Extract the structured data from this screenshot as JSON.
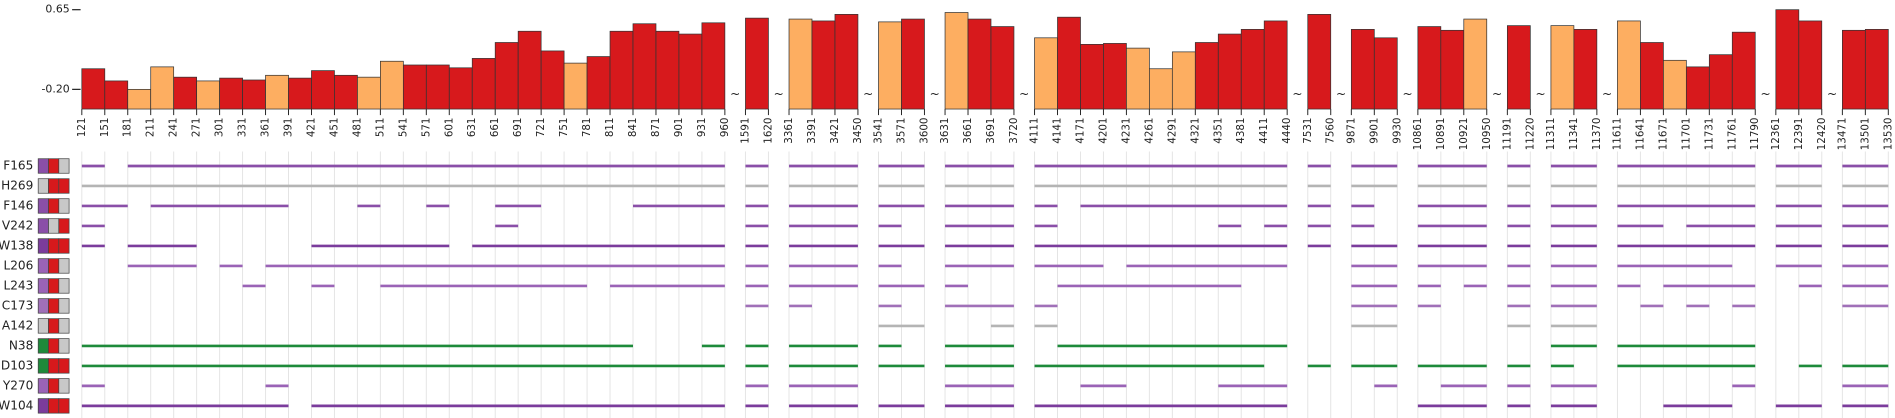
{
  "chart_data": {
    "type": "bar",
    "ylim": [
      -0.41,
      0.65
    ],
    "yticks": [
      0.65,
      {
        "value": -0.2,
        "label": "-0.20"
      }
    ],
    "break_label": "~",
    "grid": true,
    "segments": [
      {
        "bins": [
          121,
          151,
          181,
          211,
          241,
          271,
          301,
          331,
          361,
          391,
          421,
          451,
          481,
          511,
          541,
          571,
          601,
          631,
          661,
          691,
          721,
          751,
          781,
          811,
          841,
          871,
          901,
          931,
          960
        ],
        "values": [
          0.02,
          -0.11,
          -0.2,
          0.04,
          -0.07,
          -0.11,
          -0.08,
          -0.1,
          -0.05,
          -0.08,
          0.0,
          -0.05,
          -0.07,
          0.1,
          0.06,
          0.06,
          0.03,
          0.13,
          0.3,
          0.42,
          0.21,
          0.08,
          0.15,
          0.42,
          0.5,
          0.42,
          0.39,
          0.51
        ],
        "colors": [
          "#d7191c",
          "#d7191c",
          "#fdae61",
          "#fdae61",
          "#d7191c",
          "#fdae61",
          "#d7191c",
          "#d7191c",
          "#fdae61",
          "#d7191c",
          "#d7191c",
          "#d7191c",
          "#fdae61",
          "#fdae61",
          "#d7191c",
          "#d7191c",
          "#d7191c",
          "#d7191c",
          "#d7191c",
          "#d7191c",
          "#d7191c",
          "#fdae61",
          "#d7191c",
          "#d7191c",
          "#d7191c",
          "#d7191c",
          "#d7191c",
          "#d7191c"
        ]
      },
      {
        "bins": [
          1591,
          1620
        ],
        "values": [
          0.56
        ],
        "colors": [
          "#d7191c"
        ]
      },
      {
        "bins": [
          3361,
          3391,
          3421,
          3450
        ],
        "values": [
          0.55,
          0.53,
          0.6
        ],
        "colors": [
          "#fdae61",
          "#d7191c",
          "#d7191c"
        ]
      },
      {
        "bins": [
          3541,
          3571,
          3600
        ],
        "values": [
          0.52,
          0.55
        ],
        "colors": [
          "#fdae61",
          "#d7191c"
        ]
      },
      {
        "bins": [
          3631,
          3661,
          3691,
          3720
        ],
        "values": [
          0.62,
          0.55,
          0.47
        ],
        "colors": [
          "#fdae61",
          "#d7191c",
          "#d7191c"
        ]
      },
      {
        "bins": [
          4111,
          4141,
          4171,
          4201,
          4231,
          4261,
          4291,
          4321,
          4351,
          4381,
          4411,
          4440
        ],
        "values": [
          0.35,
          0.57,
          0.28,
          0.29,
          0.24,
          0.02,
          0.2,
          0.3,
          0.39,
          0.44,
          0.53
        ],
        "colors": [
          "#fdae61",
          "#d7191c",
          "#d7191c",
          "#d7191c",
          "#fdae61",
          "#fdae61",
          "#fdae61",
          "#d7191c",
          "#d7191c",
          "#d7191c",
          "#d7191c"
        ]
      },
      {
        "bins": [
          7531,
          7560
        ],
        "values": [
          0.6
        ],
        "colors": [
          "#d7191c"
        ]
      },
      {
        "bins": [
          9871,
          9901,
          9930
        ],
        "values": [
          0.44,
          0.35
        ],
        "colors": [
          "#d7191c",
          "#d7191c"
        ]
      },
      {
        "bins": [
          10861,
          10891,
          10921,
          10950
        ],
        "values": [
          0.47,
          0.43,
          0.55
        ],
        "colors": [
          "#d7191c",
          "#d7191c",
          "#fdae61"
        ]
      },
      {
        "bins": [
          11191,
          11220
        ],
        "values": [
          0.48
        ],
        "colors": [
          "#d7191c"
        ]
      },
      {
        "bins": [
          11311,
          11341,
          11370
        ],
        "values": [
          0.48,
          0.44
        ],
        "colors": [
          "#fdae61",
          "#d7191c"
        ]
      },
      {
        "bins": [
          11611,
          11641,
          11671,
          11701,
          11731,
          11761,
          11790
        ],
        "values": [
          0.53,
          0.3,
          0.11,
          0.04,
          0.17,
          0.41
        ],
        "colors": [
          "#fdae61",
          "#d7191c",
          "#fdae61",
          "#d7191c",
          "#d7191c",
          "#d7191c"
        ]
      },
      {
        "bins": [
          12361,
          12391,
          12420
        ],
        "values": [
          0.65,
          0.53
        ],
        "colors": [
          "#d7191c",
          "#d7191c"
        ]
      },
      {
        "bins": [
          13471,
          13501,
          13530
        ],
        "values": [
          0.43,
          0.44
        ],
        "colors": [
          "#d7191c",
          "#d7191c"
        ]
      }
    ],
    "rows": [
      {
        "name": "F165",
        "color": "#8a4fa8",
        "swatches": [
          "#8a4fa8",
          "#d7191c",
          "#c8c8c8"
        ],
        "spans": [
          [
            121,
            151
          ],
          [
            181,
            960
          ],
          [
            1591,
            1620
          ],
          [
            3361,
            3450
          ],
          [
            3541,
            3600
          ],
          [
            3631,
            3720
          ],
          [
            4111,
            4440
          ],
          [
            7531,
            7560
          ],
          [
            9871,
            9930
          ],
          [
            10861,
            10950
          ],
          [
            11191,
            11220
          ],
          [
            11311,
            11370
          ],
          [
            11611,
            11790
          ],
          [
            12361,
            12420
          ],
          [
            13471,
            13530
          ]
        ]
      },
      {
        "name": "H269",
        "color": "#b4b4b4",
        "swatches": [
          "#c8c8c8",
          "#d7191c",
          "#d7191c"
        ],
        "spans": [
          [
            121,
            960
          ],
          [
            1591,
            1620
          ],
          [
            3361,
            3450
          ],
          [
            3541,
            3600
          ],
          [
            3631,
            3720
          ],
          [
            4111,
            4440
          ],
          [
            7531,
            7560
          ],
          [
            9871,
            9930
          ],
          [
            10861,
            10950
          ],
          [
            11191,
            11220
          ],
          [
            11311,
            11370
          ],
          [
            11611,
            11790
          ],
          [
            12361,
            12420
          ],
          [
            13471,
            13530
          ]
        ]
      },
      {
        "name": "F146",
        "color": "#8a4fa8",
        "swatches": [
          "#8a4fa8",
          "#d7191c",
          "#c8c8c8"
        ],
        "spans": [
          [
            121,
            181
          ],
          [
            211,
            391
          ],
          [
            481,
            511
          ],
          [
            571,
            601
          ],
          [
            661,
            721
          ],
          [
            841,
            960
          ],
          [
            1591,
            1620
          ],
          [
            3361,
            3450
          ],
          [
            3541,
            3600
          ],
          [
            3631,
            3720
          ],
          [
            4111,
            4141
          ],
          [
            4171,
            4440
          ],
          [
            7531,
            7560
          ],
          [
            9871,
            9901
          ],
          [
            10861,
            10950
          ],
          [
            11191,
            11220
          ],
          [
            11311,
            11370
          ],
          [
            11611,
            11790
          ],
          [
            12361,
            12420
          ],
          [
            13471,
            13530
          ]
        ]
      },
      {
        "name": "V242",
        "color": "#8a4fa8",
        "swatches": [
          "#8a4fa8",
          "#c8c8c8",
          "#d7191c"
        ],
        "spans": [
          [
            121,
            151
          ],
          [
            661,
            691
          ],
          [
            1591,
            1620
          ],
          [
            3361,
            3450
          ],
          [
            3541,
            3571
          ],
          [
            3631,
            3720
          ],
          [
            4111,
            4141
          ],
          [
            4351,
            4381
          ],
          [
            4411,
            4440
          ],
          [
            7531,
            7560
          ],
          [
            9871,
            9901
          ],
          [
            10861,
            10950
          ],
          [
            11191,
            11220
          ],
          [
            11311,
            11370
          ],
          [
            11611,
            11671
          ],
          [
            11701,
            11790
          ],
          [
            12361,
            12420
          ],
          [
            13471,
            13530
          ]
        ]
      },
      {
        "name": "W138",
        "color": "#7b3c9c",
        "swatches": [
          "#7b3c9c",
          "#d7191c",
          "#d7191c"
        ],
        "spans": [
          [
            121,
            151
          ],
          [
            181,
            271
          ],
          [
            421,
            601
          ],
          [
            631,
            960
          ],
          [
            1591,
            1620
          ],
          [
            3361,
            3450
          ],
          [
            3541,
            3600
          ],
          [
            3631,
            3720
          ],
          [
            4111,
            4440
          ],
          [
            7531,
            7560
          ],
          [
            9871,
            9930
          ],
          [
            10861,
            10950
          ],
          [
            11191,
            11220
          ],
          [
            11311,
            11370
          ],
          [
            11611,
            11790
          ],
          [
            12361,
            12420
          ],
          [
            13471,
            13530
          ]
        ]
      },
      {
        "name": "L206",
        "color": "#9a63b6",
        "swatches": [
          "#9a63b6",
          "#d7191c",
          "#c8c8c8"
        ],
        "spans": [
          [
            181,
            271
          ],
          [
            301,
            331
          ],
          [
            361,
            960
          ],
          [
            1591,
            1620
          ],
          [
            3361,
            3450
          ],
          [
            3541,
            3571
          ],
          [
            3631,
            3720
          ],
          [
            4111,
            4201
          ],
          [
            4231,
            4440
          ],
          [
            9871,
            9930
          ],
          [
            10861,
            10950
          ],
          [
            11191,
            11220
          ],
          [
            11311,
            11370
          ],
          [
            11611,
            11761
          ],
          [
            12361,
            12420
          ],
          [
            13471,
            13530
          ]
        ]
      },
      {
        "name": "L243",
        "color": "#9a63b6",
        "swatches": [
          "#9a63b6",
          "#d7191c",
          "#c8c8c8"
        ],
        "spans": [
          [
            331,
            361
          ],
          [
            421,
            451
          ],
          [
            511,
            781
          ],
          [
            811,
            960
          ],
          [
            1591,
            1620
          ],
          [
            3361,
            3450
          ],
          [
            3541,
            3600
          ],
          [
            3631,
            3661
          ],
          [
            4141,
            4381
          ],
          [
            9871,
            9930
          ],
          [
            10861,
            10891
          ],
          [
            10921,
            10950
          ],
          [
            11191,
            11220
          ],
          [
            11311,
            11370
          ],
          [
            11611,
            11641
          ],
          [
            11671,
            11790
          ],
          [
            12391,
            12420
          ],
          [
            13471,
            13530
          ]
        ]
      },
      {
        "name": "C173",
        "color": "#a070b8",
        "swatches": [
          "#a070b8",
          "#d7191c",
          "#c8c8c8"
        ],
        "spans": [
          [
            1591,
            1620
          ],
          [
            3361,
            3391
          ],
          [
            3541,
            3571
          ],
          [
            3631,
            3720
          ],
          [
            4111,
            4141
          ],
          [
            9871,
            9930
          ],
          [
            10861,
            10891
          ],
          [
            11191,
            11220
          ],
          [
            11311,
            11370
          ],
          [
            11641,
            11671
          ],
          [
            11701,
            11731
          ],
          [
            11761,
            11790
          ],
          [
            13471,
            13530
          ]
        ]
      },
      {
        "name": "A142",
        "color": "#b4b4b4",
        "swatches": [
          "#c8c8c8",
          "#d7191c",
          "#c8c8c8"
        ],
        "spans": [
          [
            3541,
            3600
          ],
          [
            3691,
            3720
          ],
          [
            4111,
            4141
          ],
          [
            9871,
            9930
          ],
          [
            11191,
            11220
          ],
          [
            11311,
            11370
          ]
        ]
      },
      {
        "name": "N38",
        "color": "#1e8a3a",
        "swatches": [
          "#1e8a3a",
          "#d7191c",
          "#c8c8c8"
        ],
        "spans": [
          [
            121,
            841
          ],
          [
            931,
            960
          ],
          [
            1591,
            1620
          ],
          [
            3361,
            3450
          ],
          [
            3541,
            3571
          ],
          [
            3631,
            3720
          ],
          [
            4141,
            4440
          ],
          [
            11311,
            11370
          ],
          [
            11611,
            11790
          ]
        ]
      },
      {
        "name": "D103",
        "color": "#1e8a3a",
        "swatches": [
          "#1e8a3a",
          "#d7191c",
          "#d7191c"
        ],
        "spans": [
          [
            121,
            960
          ],
          [
            1591,
            1620
          ],
          [
            3361,
            3450
          ],
          [
            3541,
            3600
          ],
          [
            3631,
            3720
          ],
          [
            4111,
            4411
          ],
          [
            7531,
            7560
          ],
          [
            9871,
            9930
          ],
          [
            10861,
            10950
          ],
          [
            11191,
            11220
          ],
          [
            11311,
            11341
          ],
          [
            11611,
            11790
          ],
          [
            12391,
            12420
          ],
          [
            13471,
            13530
          ]
        ]
      },
      {
        "name": "Y270",
        "color": "#9a63b6",
        "swatches": [
          "#9a63b6",
          "#d7191c",
          "#c8c8c8"
        ],
        "spans": [
          [
            121,
            151
          ],
          [
            361,
            391
          ],
          [
            1591,
            1620
          ],
          [
            3361,
            3450
          ],
          [
            3631,
            3720
          ],
          [
            4171,
            4231
          ],
          [
            4351,
            4440
          ],
          [
            9901,
            9930
          ],
          [
            10891,
            10950
          ],
          [
            11191,
            11220
          ],
          [
            11311,
            11370
          ],
          [
            11761,
            11790
          ],
          [
            13471,
            13530
          ]
        ]
      },
      {
        "name": "W104",
        "color": "#7b3c9c",
        "swatches": [
          "#7b3c9c",
          "#d7191c",
          "#d7191c"
        ],
        "spans": [
          [
            121,
            391
          ],
          [
            421,
            960
          ],
          [
            1591,
            1620
          ],
          [
            3361,
            3450
          ],
          [
            3541,
            3600
          ],
          [
            3631,
            3720
          ],
          [
            4111,
            4440
          ],
          [
            10861,
            10950
          ],
          [
            11191,
            11220
          ],
          [
            11311,
            11370
          ],
          [
            11671,
            11761
          ],
          [
            12361,
            12420
          ],
          [
            13471,
            13530
          ]
        ]
      }
    ]
  }
}
